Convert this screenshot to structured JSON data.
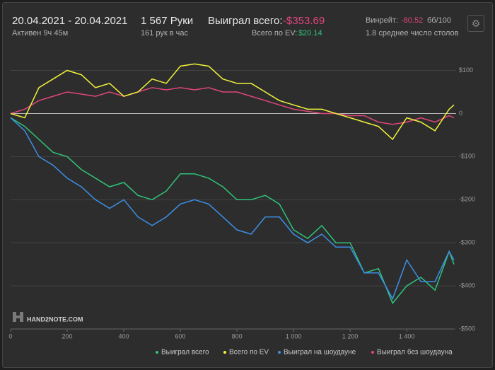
{
  "header": {
    "date_range": "20.04.2021 - 20.04.2021",
    "active": "Активен 9ч 45м",
    "hands": "1 567 Руки",
    "hands_per_hour": "161 рук в час",
    "won_label": "Выиграл всего:",
    "won_value": "-$353.69",
    "ev_label": "Всего по EV:",
    "ev_value": "$20.14",
    "winrate_label": "Винрейт:",
    "winrate_value": "-80.52",
    "winrate_unit": "бб/100",
    "tables": "1.8 среднее число столов"
  },
  "logo": "HAND2NOTE.COM",
  "chart_data": {
    "type": "line",
    "x": [
      0,
      50,
      100,
      150,
      200,
      250,
      300,
      350,
      400,
      450,
      500,
      550,
      600,
      650,
      700,
      750,
      800,
      850,
      900,
      950,
      1000,
      1050,
      1100,
      1150,
      1200,
      1250,
      1300,
      1350,
      1400,
      1450,
      1500,
      1550,
      1567
    ],
    "series": [
      {
        "name": "Выиграл всего",
        "color": "#2fc47a",
        "values": [
          -10,
          -30,
          -60,
          -90,
          -100,
          -130,
          -150,
          -170,
          -160,
          -190,
          -200,
          -180,
          -140,
          -140,
          -150,
          -170,
          -200,
          -200,
          -190,
          -210,
          -270,
          -290,
          -260,
          -300,
          -300,
          -370,
          -360,
          -440,
          -400,
          -380,
          -410,
          -320,
          -350
        ]
      },
      {
        "name": "Всего по EV",
        "color": "#f2f23a",
        "values": [
          0,
          -10,
          60,
          80,
          100,
          90,
          60,
          70,
          40,
          50,
          80,
          70,
          110,
          115,
          110,
          80,
          70,
          70,
          50,
          30,
          20,
          10,
          10,
          0,
          -10,
          -20,
          -30,
          -60,
          -10,
          -20,
          -40,
          10,
          20
        ]
      },
      {
        "name": "Выиграл на шоудауне",
        "color": "#3c8fe6",
        "values": [
          -10,
          -40,
          -100,
          -120,
          -150,
          -170,
          -200,
          -220,
          -200,
          -240,
          -260,
          -240,
          -210,
          -200,
          -210,
          -240,
          -270,
          -280,
          -240,
          -240,
          -280,
          -300,
          -280,
          -310,
          -310,
          -370,
          -370,
          -430,
          -340,
          -390,
          -390,
          -320,
          -340
        ]
      },
      {
        "name": "Выиграл без шоудауна",
        "color": "#e0457c",
        "values": [
          0,
          10,
          30,
          40,
          50,
          45,
          40,
          50,
          40,
          50,
          60,
          55,
          60,
          55,
          60,
          50,
          50,
          40,
          30,
          20,
          10,
          5,
          0,
          0,
          -5,
          -5,
          -20,
          -25,
          -20,
          -10,
          -20,
          -5,
          -10
        ]
      }
    ],
    "xlim": [
      0,
      1567
    ],
    "ylim": [
      -500,
      160
    ],
    "xticks": [
      0,
      200,
      400,
      600,
      800,
      {
        "value": 1000,
        "label": "1 000"
      },
      {
        "value": 1200,
        "label": "1 200"
      },
      {
        "value": 1400,
        "label": "1 400"
      }
    ],
    "yticks": [
      {
        "value": 100,
        "label": "$100"
      },
      0,
      {
        "value": -100,
        "label": "-$100"
      },
      {
        "value": -200,
        "label": "-$200"
      },
      {
        "value": -300,
        "label": "-$300"
      },
      {
        "value": -400,
        "label": "-$400"
      },
      {
        "value": -500,
        "label": "-$500"
      }
    ],
    "grid": true
  }
}
